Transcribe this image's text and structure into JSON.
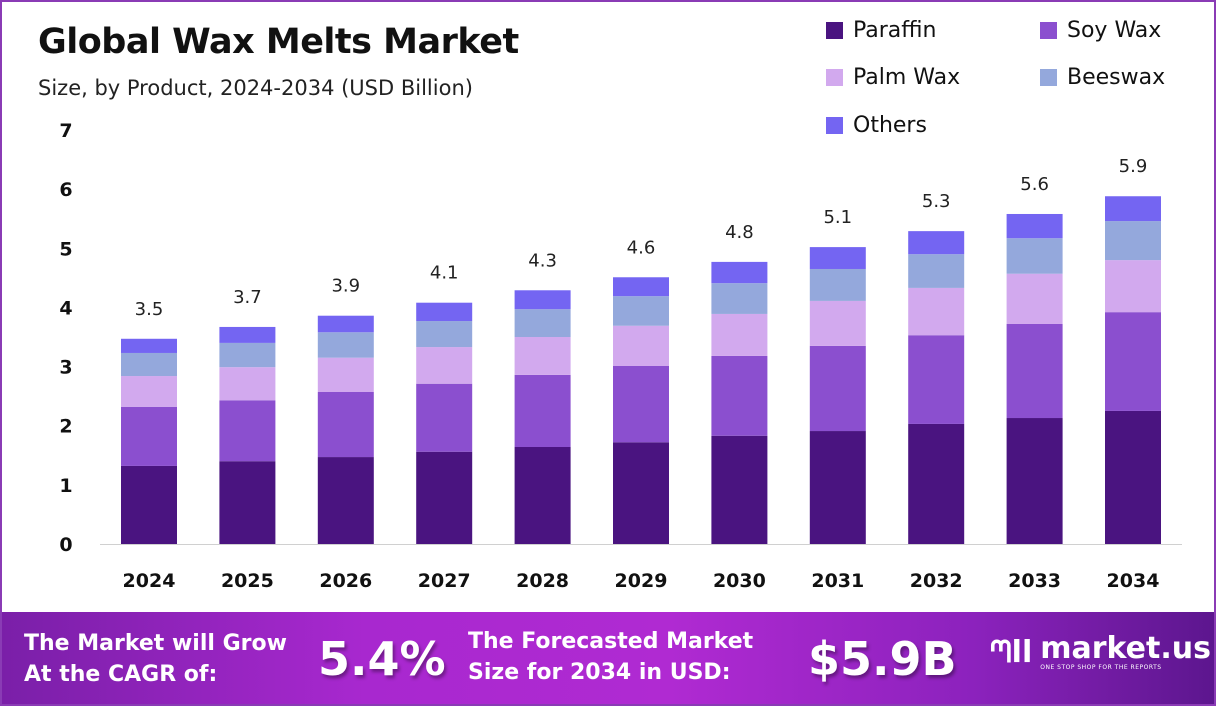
{
  "header": {
    "title": "Global Wax Melts Market",
    "subtitle": "Size, by Product, 2024-2034 (USD Billion)"
  },
  "chart_data": {
    "type": "bar",
    "stacked": true,
    "title": "Global Wax Melts Market",
    "subtitle": "Size, by Product, 2024-2034 (USD Billion)",
    "categories": [
      "2024",
      "2025",
      "2026",
      "2027",
      "2028",
      "2029",
      "2030",
      "2031",
      "2032",
      "2033",
      "2034"
    ],
    "series": [
      {
        "name": "Paraffin",
        "color": "#4a1480",
        "values": [
          1.32,
          1.4,
          1.47,
          1.56,
          1.64,
          1.72,
          1.83,
          1.91,
          2.03,
          2.13,
          2.25
        ]
      },
      {
        "name": "Soy Wax",
        "color": "#8b4fcf",
        "values": [
          1.0,
          1.03,
          1.1,
          1.15,
          1.22,
          1.29,
          1.35,
          1.44,
          1.5,
          1.59,
          1.67
        ]
      },
      {
        "name": "Palm Wax",
        "color": "#d2a9ee",
        "values": [
          0.52,
          0.56,
          0.58,
          0.62,
          0.64,
          0.68,
          0.71,
          0.76,
          0.8,
          0.85,
          0.88
        ]
      },
      {
        "name": "Beeswax",
        "color": "#94a8dc",
        "values": [
          0.39,
          0.41,
          0.43,
          0.44,
          0.47,
          0.5,
          0.52,
          0.54,
          0.57,
          0.6,
          0.66
        ]
      },
      {
        "name": "Others",
        "color": "#7465f2",
        "values": [
          0.24,
          0.27,
          0.28,
          0.31,
          0.32,
          0.32,
          0.36,
          0.37,
          0.39,
          0.41,
          0.42
        ]
      }
    ],
    "totals": [
      "3.5",
      "3.7",
      "3.9",
      "4.1",
      "4.3",
      "4.6",
      "4.8",
      "5.1",
      "5.3",
      "5.6",
      "5.9"
    ],
    "ylim": [
      0,
      7
    ],
    "yticks": [
      "0",
      "1",
      "2",
      "3",
      "4",
      "5",
      "6",
      "7"
    ],
    "grid": false,
    "legend": "top-right",
    "xlabel": "",
    "ylabel": ""
  },
  "footer": {
    "cagr_label_1": "The Market will Grow",
    "cagr_label_2": "At the CAGR of:",
    "cagr_value": "5.4%",
    "forecast_label_1": "The Forecasted Market",
    "forecast_label_2": "Size for 2034 in USD:",
    "forecast_value": "$5.9B",
    "brand": "market.us",
    "tagline": "ONE STOP SHOP FOR THE REPORTS"
  }
}
